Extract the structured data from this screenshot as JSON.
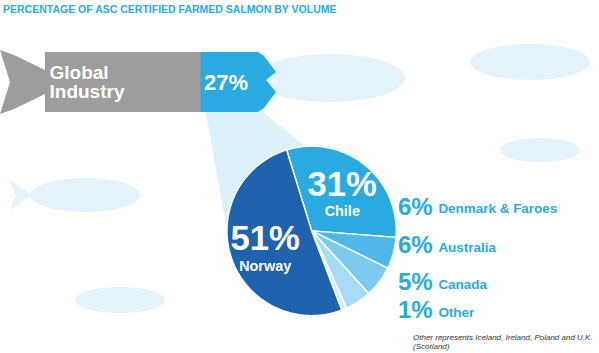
{
  "chart_data": [
    {
      "type": "bar",
      "title": "PERCENTAGE OF ASC CERTIFIED FARMED SALMON BY VOLUME",
      "orientation": "horizontal",
      "categories": [
        "Global Industry"
      ],
      "values": [
        27
      ],
      "value_labels": [
        "27%"
      ],
      "xlim": [
        0,
        100
      ],
      "tick_labels": false,
      "data_labels": true,
      "color": "#29abe2"
    },
    {
      "type": "pie",
      "categories": [
        "Chile",
        "Denmark & Faroes",
        "Australia",
        "Canada",
        "Other",
        "Norway"
      ],
      "values": [
        31,
        6,
        6,
        5,
        1,
        51
      ],
      "value_labels": [
        "31%",
        "6%",
        "6%",
        "5%",
        "1%",
        "51%"
      ],
      "colors": [
        "#29abe2",
        "#4fb8e8",
        "#7ccbef",
        "#a8dcf4",
        "#d3edf9",
        "#1f62ad"
      ],
      "data_labels": true,
      "annotations": [
        "Other represents Iceland, Ireland, Poland and U.K. (Scotland)"
      ]
    }
  ]
}
